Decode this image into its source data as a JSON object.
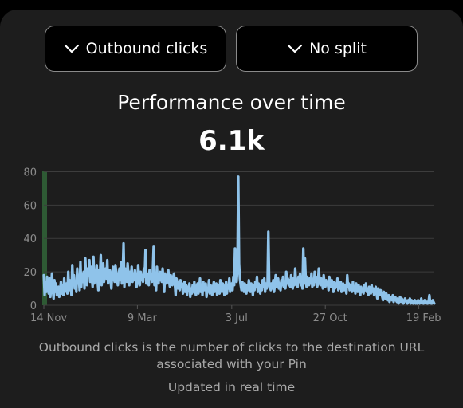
{
  "controls": {
    "metric_label": "Outbound clicks",
    "split_label": "No split"
  },
  "summary": {
    "title": "Performance over time",
    "total": "6.1k"
  },
  "footer": {
    "description": "Outbound clicks is the number of clicks to the destination URL associated with your Pin",
    "updated": "Updated in real time"
  },
  "colors": {
    "line": "#8fc3ea",
    "highlight": "#2e5a34"
  },
  "icons": {
    "dropdown": "chevron-down-icon"
  },
  "chart_data": {
    "type": "line",
    "ylim": [
      0,
      85
    ],
    "y_ticks": [
      "0",
      "20",
      "40",
      "60",
      "80"
    ],
    "x_ticks": [
      {
        "label": "14 Nov",
        "index": 0
      },
      {
        "label": "9 Mar",
        "index": 115
      },
      {
        "label": "3 Jul",
        "index": 231
      },
      {
        "label": "27 Oct",
        "index": 346
      },
      {
        "label": "19 Feb",
        "index": 461
      }
    ],
    "grid": true,
    "highlight_index": 0,
    "series": [
      {
        "values": [
          18,
          6,
          14,
          8,
          17,
          11,
          7,
          16,
          5,
          12,
          19,
          9,
          4,
          15,
          8,
          13,
          6,
          10,
          11,
          5,
          9,
          14,
          7,
          12,
          6,
          16,
          8,
          10,
          13,
          7,
          20,
          9,
          15,
          11,
          6,
          24,
          12,
          18,
          10,
          14,
          8,
          22,
          13,
          17,
          9,
          26,
          11,
          19,
          14,
          20,
          10,
          28,
          15,
          12,
          22,
          18,
          27,
          14,
          23,
          16,
          11,
          29,
          13,
          20,
          17,
          24,
          15,
          9,
          21,
          18,
          30,
          12,
          17,
          25,
          14,
          19,
          22,
          16,
          27,
          13,
          18,
          21,
          15,
          10,
          19,
          23,
          17,
          14,
          24,
          20,
          16,
          12,
          18,
          22,
          15,
          26,
          13,
          19,
          37,
          11,
          22,
          16,
          14,
          25,
          18,
          12,
          20,
          16,
          23,
          14,
          19,
          15,
          21,
          17,
          11,
          13,
          24,
          16,
          12,
          20,
          15,
          18,
          14,
          22,
          17,
          33,
          13,
          19,
          15,
          12,
          21,
          16,
          18,
          14,
          20,
          35,
          12,
          17,
          9,
          23,
          15,
          13,
          18,
          20,
          16,
          14,
          22,
          15,
          8,
          19,
          17,
          13,
          16,
          21,
          14,
          11,
          18,
          15,
          12,
          17,
          19,
          13,
          6,
          16,
          14,
          10,
          12,
          9,
          15,
          11,
          13,
          7,
          10,
          14,
          8,
          12,
          6,
          11,
          9,
          13,
          5,
          10,
          7,
          12,
          8,
          14,
          9,
          6,
          11,
          13,
          7,
          10,
          16,
          8,
          12,
          6,
          14,
          9,
          11,
          13,
          5,
          10,
          8,
          15,
          7,
          12,
          9,
          6,
          11,
          14,
          8,
          10,
          13,
          6,
          9,
          12,
          7,
          15,
          10,
          8,
          13,
          11,
          6,
          9,
          14,
          7,
          12,
          10,
          16,
          8,
          11,
          13,
          9,
          17,
          12,
          34,
          18,
          14,
          22,
          77,
          25,
          16,
          12,
          9,
          14,
          11,
          8,
          13,
          10,
          7,
          12,
          9,
          15,
          11,
          8,
          13,
          10,
          6,
          12,
          9,
          14,
          11,
          17,
          8,
          13,
          10,
          7,
          12,
          9,
          15,
          11,
          16,
          8,
          13,
          10,
          12,
          44,
          14,
          11,
          9,
          13,
          10,
          15,
          8,
          12,
          18,
          11,
          14,
          16,
          10,
          13,
          9,
          15,
          12,
          17,
          11,
          14,
          10,
          20,
          13,
          16,
          12,
          15,
          11,
          18,
          14,
          10,
          16,
          12,
          22,
          13,
          15,
          11,
          17,
          14,
          19,
          12,
          16,
          10,
          34,
          13,
          28,
          15,
          11,
          17,
          14,
          12,
          16,
          13,
          19,
          11,
          15,
          12,
          20,
          14,
          17,
          11,
          13,
          22,
          15,
          12,
          16,
          14,
          10,
          18,
          13,
          11,
          15,
          12,
          14,
          9,
          17,
          13,
          11,
          15,
          12,
          8,
          14,
          10,
          13,
          11,
          16,
          9,
          12,
          10,
          14,
          8,
          11,
          13,
          9,
          12,
          10,
          7,
          18,
          11,
          13,
          9,
          12,
          10,
          8,
          14,
          9,
          11,
          7,
          13,
          10,
          8,
          12,
          9,
          6,
          11,
          8,
          10,
          7,
          12,
          9,
          13,
          8,
          10,
          6,
          11,
          9,
          7,
          12,
          8,
          10,
          6,
          9,
          11,
          7,
          4,
          10,
          8,
          6,
          9,
          7,
          5,
          3,
          8,
          6,
          4,
          7,
          5,
          3,
          6,
          2,
          5,
          4,
          3,
          6,
          2,
          4,
          5,
          3,
          2,
          4,
          1,
          3,
          5,
          2,
          4,
          3,
          1,
          2,
          4,
          3,
          2,
          1,
          3,
          2,
          4,
          1,
          3,
          2,
          1,
          2,
          3,
          1,
          2,
          1,
          3,
          2,
          1,
          2,
          4,
          1,
          2,
          1,
          3,
          2,
          1,
          2,
          1,
          2,
          6,
          1,
          2,
          1,
          3,
          2,
          1
        ]
      }
    ]
  }
}
